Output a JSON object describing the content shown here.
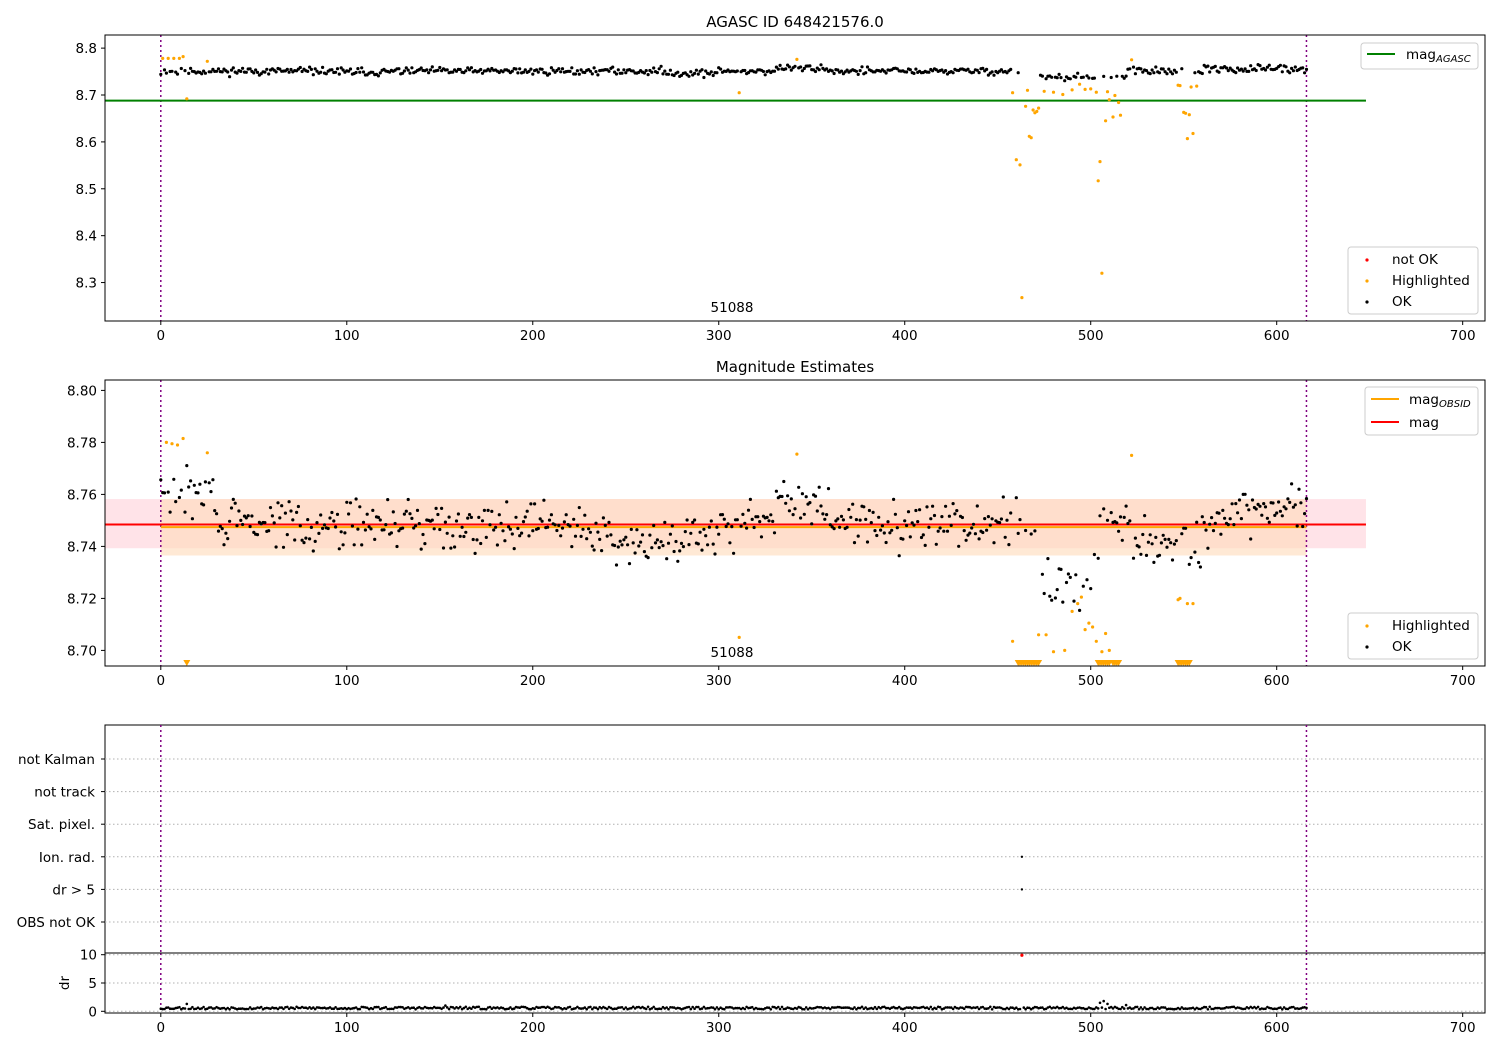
{
  "chart_data": [
    {
      "type": "scatter",
      "title": "AGASC ID 648421576.0",
      "annotation": "51088",
      "xlim": [
        -30,
        712
      ],
      "ylim": [
        8.218,
        8.828
      ],
      "xticks": [
        0,
        100,
        200,
        300,
        400,
        500,
        600,
        700
      ],
      "xtick_labels": [
        "0",
        "100",
        "200",
        "300",
        "400",
        "500",
        "600",
        "700"
      ],
      "yticks": [
        8.3,
        8.4,
        8.5,
        8.6,
        8.7,
        8.8
      ],
      "ytick_labels": [
        "8.3",
        "8.4",
        "8.5",
        "8.6",
        "8.7",
        "8.8"
      ],
      "vlines": [
        0,
        616
      ],
      "reference_lines": [
        {
          "name": "mag",
          "subscript": "AGASC",
          "y": 8.688,
          "x0": -30,
          "x1": 648,
          "color": "#008000"
        }
      ],
      "legend_upper": [
        {
          "label": "mag",
          "subscript": "AGASC",
          "kind": "line",
          "color": "#008000"
        }
      ],
      "legend_lower": [
        {
          "label": "not OK",
          "kind": "dot",
          "color": "#ff0000"
        },
        {
          "label": "Highlighted",
          "kind": "dot",
          "color": "#ffa500"
        },
        {
          "label": "OK",
          "kind": "dot",
          "color": "#000000"
        }
      ],
      "highlight_points": [
        [
          1,
          8.778
        ],
        [
          4,
          8.778
        ],
        [
          7,
          8.778
        ],
        [
          10,
          8.778
        ],
        [
          12,
          8.782
        ],
        [
          14,
          8.692
        ],
        [
          25,
          8.772
        ],
        [
          311,
          8.705
        ],
        [
          342,
          8.776
        ],
        [
          458,
          8.705
        ],
        [
          460,
          8.562
        ],
        [
          462,
          8.551
        ],
        [
          463,
          8.268
        ],
        [
          465,
          8.676
        ],
        [
          466,
          8.71
        ],
        [
          467,
          8.612
        ],
        [
          468,
          8.609
        ],
        [
          469,
          8.668
        ],
        [
          470,
          8.662
        ],
        [
          471,
          8.665
        ],
        [
          472,
          8.672
        ],
        [
          475,
          8.708
        ],
        [
          480,
          8.706
        ],
        [
          485,
          8.701
        ],
        [
          490,
          8.711
        ],
        [
          494,
          8.723
        ],
        [
          497,
          8.712
        ],
        [
          500,
          8.713
        ],
        [
          503,
          8.706
        ],
        [
          504,
          8.517
        ],
        [
          505,
          8.558
        ],
        [
          506,
          8.32
        ],
        [
          508,
          8.645
        ],
        [
          509,
          8.707
        ],
        [
          510,
          8.69
        ],
        [
          512,
          8.653
        ],
        [
          513,
          8.699
        ],
        [
          515,
          8.684
        ],
        [
          516,
          8.657
        ],
        [
          522,
          8.775
        ],
        [
          547,
          8.721
        ],
        [
          548,
          8.72
        ],
        [
          550,
          8.663
        ],
        [
          551,
          8.661
        ],
        [
          552,
          8.607
        ],
        [
          553,
          8.658
        ],
        [
          554,
          8.717
        ],
        [
          555,
          8.618
        ],
        [
          557,
          8.719
        ]
      ]
    },
    {
      "type": "scatter",
      "title": "Magnitude Estimates",
      "annotation": "51088",
      "xlim": [
        -30,
        712
      ],
      "ylim": [
        8.694,
        8.804
      ],
      "xticks": [
        0,
        100,
        200,
        300,
        400,
        500,
        600,
        700
      ],
      "xtick_labels": [
        "0",
        "100",
        "200",
        "300",
        "400",
        "500",
        "600",
        "700"
      ],
      "yticks": [
        8.7,
        8.72,
        8.74,
        8.76,
        8.78,
        8.8
      ],
      "ytick_labels": [
        "8.70",
        "8.72",
        "8.74",
        "8.76",
        "8.78",
        "8.80"
      ],
      "vlines": [
        0,
        616
      ],
      "bands": [
        {
          "x0": -30,
          "x1": 648,
          "y0": 8.7393,
          "y1": 8.7582,
          "color": "#ffc0cb"
        },
        {
          "x0": 0,
          "x1": 616,
          "y0": 8.7365,
          "y1": 8.7582,
          "color": "#ffdab9"
        }
      ],
      "reference_lines": [
        {
          "name": "mag",
          "y": 8.7484,
          "x0": -30,
          "x1": 648,
          "color": "#ff0000"
        },
        {
          "name": "mag",
          "subscript": "OBSID",
          "y": 8.7474,
          "x0": 0,
          "x1": 616,
          "color": "#ffa500"
        }
      ],
      "legend_upper": [
        {
          "label": "mag",
          "subscript": "OBSID",
          "kind": "line",
          "color": "#ffa500"
        },
        {
          "label": "mag",
          "kind": "line",
          "color": "#ff0000"
        }
      ],
      "legend_lower": [
        {
          "label": "Highlighted",
          "kind": "dot",
          "color": "#ffa500"
        },
        {
          "label": "OK",
          "kind": "dot",
          "color": "#000000"
        }
      ],
      "highlight_points": [
        [
          3,
          8.78
        ],
        [
          6,
          8.7795
        ],
        [
          9,
          8.779
        ],
        [
          12,
          8.7815
        ],
        [
          25,
          8.776
        ],
        [
          311,
          8.705
        ],
        [
          342,
          8.7755
        ],
        [
          458,
          8.7035
        ],
        [
          472,
          8.706
        ],
        [
          476,
          8.706
        ],
        [
          480,
          8.6995
        ],
        [
          486,
          8.7
        ],
        [
          490,
          8.715
        ],
        [
          493,
          8.718
        ],
        [
          495,
          8.7205
        ],
        [
          497,
          8.708
        ],
        [
          499,
          8.7105
        ],
        [
          501,
          8.709
        ],
        [
          503,
          8.7035
        ],
        [
          506,
          8.6995
        ],
        [
          508,
          8.7065
        ],
        [
          510,
          8.7
        ],
        [
          522,
          8.775
        ],
        [
          547,
          8.7195
        ],
        [
          548,
          8.72
        ],
        [
          552,
          8.718
        ],
        [
          555,
          8.718
        ]
      ],
      "below_range_markers": [
        14,
        461,
        462,
        463,
        464,
        465,
        466,
        467,
        468,
        469,
        470,
        471,
        472,
        504,
        505,
        506,
        507,
        508,
        509,
        510,
        512,
        513,
        514,
        515,
        547,
        548,
        549,
        550,
        551,
        552,
        553
      ]
    },
    {
      "type": "scatter",
      "title": "",
      "xlim": [
        -30,
        712
      ],
      "categories": [
        "not Kalman",
        "not track",
        "Sat. pixel.",
        "Ion. rad.",
        "dr > 5",
        "OBS not OK"
      ],
      "vlines": [
        0,
        616
      ],
      "flag_points": [
        {
          "category": "Ion. rad.",
          "x": 463
        },
        {
          "category": "dr > 5",
          "x": 463
        }
      ]
    },
    {
      "type": "scatter",
      "title": "",
      "ylabel": "dr",
      "xlim": [
        -30,
        712
      ],
      "ylim": [
        -0.3,
        10.3
      ],
      "xticks": [
        0,
        100,
        200,
        300,
        400,
        500,
        600,
        700
      ],
      "xtick_labels": [
        "0",
        "100",
        "200",
        "300",
        "400",
        "500",
        "600",
        "700"
      ],
      "yticks": [
        0,
        5,
        10
      ],
      "ytick_labels": [
        "0",
        "5",
        "10"
      ],
      "vlines": [
        0,
        616
      ],
      "marked_points": [
        {
          "x": 463,
          "y": 9.9,
          "color": "#ff0000"
        }
      ],
      "spikes": [
        [
          14,
          1.3
        ],
        [
          153,
          1.0
        ],
        [
          505,
          1.5
        ],
        [
          507,
          1.8
        ],
        [
          509,
          1.3
        ],
        [
          519,
          1.1
        ]
      ]
    }
  ]
}
